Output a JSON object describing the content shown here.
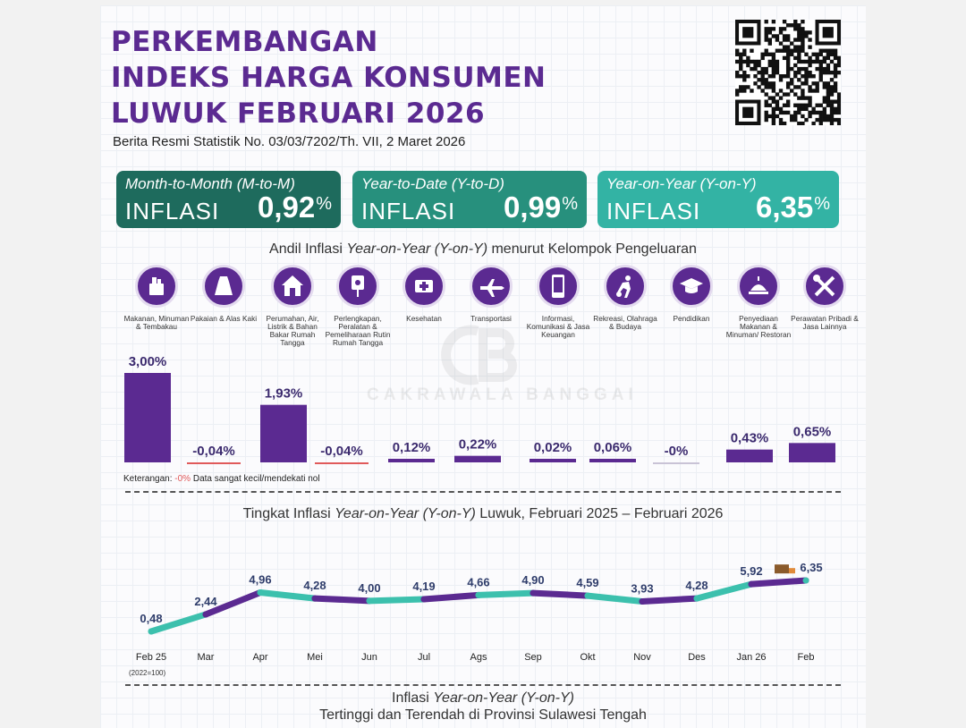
{
  "header": {
    "title_lines": [
      "PERKEMBANGAN",
      "INDEKS HARGA KONSUMEN",
      "LUWUK FEBRUARI 2026"
    ],
    "subtitle": "Berita Resmi Statistik No. 03/03/7202/Th. VII, 2 Maret 2026"
  },
  "cards": [
    {
      "label": "Month-to-Month (M-to-M)",
      "inflasi": "INFLASI",
      "value": "0,92",
      "percent": "%",
      "color": "#1e6b5d"
    },
    {
      "label": "Year-to-Date (Y-to-D)",
      "inflasi": "INFLASI",
      "value": "0,99",
      "percent": "%",
      "color": "#27907d"
    },
    {
      "label": "Year-on-Year (Y-on-Y)",
      "inflasi": "INFLASI",
      "value": "6,35",
      "percent": "%",
      "color": "#33b3a4"
    }
  ],
  "andil": {
    "title_pre": "Andil Inflasi ",
    "title_em": "Year-on-Year (Y-on-Y)",
    "title_post": " menurut Kelompok Pengeluaran"
  },
  "categories": [
    {
      "label": "Makanan, Minuman & Tembakau",
      "icon": "food-basket-icon"
    },
    {
      "label": "Pakaian & Alas Kaki",
      "icon": "dress-icon"
    },
    {
      "label": "Perumahan, Air, Listrik & Bahan Bakar Rumah Tangga",
      "icon": "house-icon"
    },
    {
      "label": "Perlengkapan, Peralatan & Pemeliharaan Rutin Rumah Tangga",
      "icon": "appliance-icon"
    },
    {
      "label": "Kesehatan",
      "icon": "medical-kit-icon"
    },
    {
      "label": "Transportasi",
      "icon": "airplane-icon"
    },
    {
      "label": "Informasi, Komunikasi & Jasa Keuangan",
      "icon": "smartphone-icon"
    },
    {
      "label": "Rekreasi, Olahraga & Budaya",
      "icon": "sports-icon"
    },
    {
      "label": "Pendidikan",
      "icon": "graduation-cap-icon"
    },
    {
      "label": "Penyediaan Makanan & Minuman/ Restoran",
      "icon": "restaurant-icon"
    },
    {
      "label": "Perawatan Pribadi & Jasa Lainnya",
      "icon": "tools-icon"
    }
  ],
  "watermark": "CAKRAWALA BANGGAI",
  "note": {
    "prefix": "Keterangan: ",
    "highlight": "-0%",
    "text": " Data sangat kecil/mendekati nol"
  },
  "line_section": {
    "title_pre": "Tingkat Inflasi ",
    "title_em": "Year-on-Year (Y-on-Y)",
    "title_post": " Luwuk, Februari 2025 – Februari 2026",
    "base_note": "(2022=100)"
  },
  "bottom": {
    "line1_pre": "Inflasi ",
    "line1_em": "Year-on-Year (Y-on-Y)",
    "line2": "Tertinggi dan Terendah di Provinsi Sulawesi Tengah"
  },
  "colors": {
    "purple": "#5b2a91",
    "teal": "#3cc0ad",
    "negative": "#e05a5a"
  },
  "chart_data": [
    {
      "type": "bar",
      "title": "Andil Inflasi Year-on-Year (Y-on-Y) menurut Kelompok Pengeluaran",
      "categories": [
        "Makanan, Minuman & Tembakau",
        "Pakaian & Alas Kaki",
        "Perumahan, Air, Listrik & Bahan Bakar Rumah Tangga",
        "Perlengkapan, Peralatan & Pemeliharaan Rutin Rumah Tangga",
        "Kesehatan",
        "Transportasi",
        "Informasi, Komunikasi & Jasa Keuangan",
        "Rekreasi, Olahraga & Budaya",
        "Pendidikan",
        "Penyediaan Makanan & Minuman/ Restoran",
        "Perawatan Pribadi & Jasa Lainnya"
      ],
      "values": [
        3.0,
        -0.04,
        1.93,
        -0.04,
        0.12,
        0.22,
        0.02,
        0.06,
        -0.001,
        0.43,
        0.65
      ],
      "labels": [
        "3,00%",
        "-0,04%",
        "1,93%",
        "-0,04%",
        "0,12%",
        "0,22%",
        "0,02%",
        "0,06%",
        "-0%",
        "0,43%",
        "0,65%"
      ],
      "ylim": [
        0,
        3.0
      ],
      "unit": "%"
    },
    {
      "type": "line",
      "title": "Tingkat Inflasi Year-on-Year (Y-on-Y) Luwuk, Februari 2025 – Februari 2026",
      "categories": [
        "Feb 25",
        "Mar",
        "Apr",
        "Mei",
        "Jun",
        "Jul",
        "Ags",
        "Sep",
        "Okt",
        "Nov",
        "Des",
        "Jan 26",
        "Feb"
      ],
      "values": [
        0.48,
        2.44,
        4.96,
        4.28,
        4.0,
        4.19,
        4.66,
        4.9,
        4.59,
        3.93,
        4.28,
        5.92,
        6.35
      ],
      "labels": [
        "0,48",
        "2,44",
        "4,96",
        "4,28",
        "4,00",
        "4,19",
        "4,66",
        "4,90",
        "4,59",
        "3,93",
        "4,28",
        "5,92",
        "6,35"
      ],
      "ylim": [
        0,
        8
      ]
    }
  ]
}
